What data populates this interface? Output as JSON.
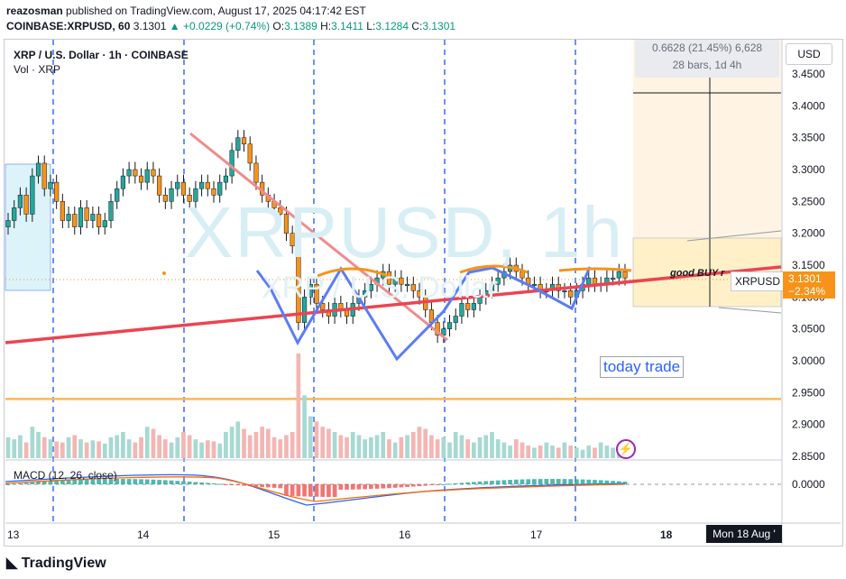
{
  "header": {
    "author": "reazosman",
    "published": "published on TradingView.com, August 17, 2025 04:17:42 EST",
    "symbol_line": "COINBASE:XRPUSD, 60",
    "last": "3.1301",
    "change": "+0.0229 (+0.74%)",
    "open_label": "O:",
    "open": "3.1389",
    "high_label": "H:",
    "high": "3.1411",
    "low_label": "L:",
    "low": "3.1284",
    "close_label": "C:",
    "close": "3.1301"
  },
  "legend": {
    "title": "XRP / U.S. Dollar · 1h · COINBASE",
    "volume": "Vol · XRP",
    "macd": "MACD (12, 26, close)"
  },
  "watermark": {
    "main": "XRPUSD, 1h",
    "sub": "XRP / U.S. Dollar"
  },
  "toolbar": {
    "currency": "USD"
  },
  "measure": {
    "line1": "0.6628 (21.45%) 6,628",
    "line2": "28 bars, 1d 4h"
  },
  "annotations": {
    "today_trade": "today trade",
    "good_buy": "good BUY r"
  },
  "price_tag": {
    "symbol": "XRPUSD",
    "price": "3.1301",
    "change": "−2.34%"
  },
  "date_tag": "Mon 18 Aug '",
  "footer": "TradingView",
  "colors": {
    "up": "#26a69a",
    "down": "#f7931a",
    "trendline": "#ef5350",
    "pattern": "#5b7cf5",
    "orange_line": "#ffb74d",
    "grid_dash": "#2962ff"
  },
  "chart_data": {
    "type": "candlestick",
    "x_ticks": [
      "13",
      "14",
      "15",
      "16",
      "17",
      "18"
    ],
    "y_ticks": [
      "3.4500",
      "3.4000",
      "3.3500",
      "3.3000",
      "3.2500",
      "3.2000",
      "3.1500",
      "3.1000",
      "3.0500",
      "3.0000",
      "2.9500",
      "2.9000",
      "2.8500"
    ],
    "macd_ticks": [
      "0.0000"
    ],
    "ylim": [
      2.845,
      3.48
    ],
    "horizontal_line": 2.94,
    "closes": [
      3.22,
      3.24,
      3.26,
      3.23,
      3.29,
      3.31,
      3.27,
      3.28,
      3.25,
      3.22,
      3.23,
      3.21,
      3.24,
      3.22,
      3.23,
      3.21,
      3.22,
      3.25,
      3.27,
      3.29,
      3.3,
      3.29,
      3.28,
      3.3,
      3.29,
      3.26,
      3.25,
      3.27,
      3.28,
      3.26,
      3.25,
      3.27,
      3.28,
      3.27,
      3.26,
      3.28,
      3.29,
      3.33,
      3.35,
      3.34,
      3.31,
      3.28,
      3.26,
      3.25,
      3.24,
      3.23,
      3.2,
      3.18,
      3.06,
      3.1,
      3.12,
      3.09,
      3.08,
      3.07,
      3.09,
      3.08,
      3.07,
      3.09,
      3.1,
      3.11,
      3.12,
      3.13,
      3.14,
      3.12,
      3.13,
      3.12,
      3.12,
      3.11,
      3.1,
      3.08,
      3.06,
      3.04,
      3.05,
      3.06,
      3.07,
      3.09,
      3.08,
      3.09,
      3.1,
      3.11,
      3.12,
      3.13,
      3.14,
      3.15,
      3.14,
      3.13,
      3.12,
      3.12,
      3.11,
      3.11,
      3.12,
      3.11,
      3.11,
      3.1,
      3.11,
      3.12,
      3.13,
      3.12,
      3.12,
      3.13,
      3.13,
      3.14,
      3.13
    ],
    "volumes": [
      20,
      18,
      22,
      15,
      30,
      25,
      20,
      18,
      16,
      15,
      20,
      22,
      18,
      15,
      17,
      16,
      14,
      20,
      22,
      25,
      18,
      15,
      20,
      30,
      28,
      22,
      18,
      15,
      20,
      25,
      22,
      18,
      15,
      17,
      16,
      14,
      25,
      30,
      35,
      28,
      22,
      25,
      30,
      28,
      20,
      18,
      22,
      25,
      100,
      60,
      40,
      35,
      30,
      28,
      25,
      22,
      20,
      25,
      22,
      18,
      20,
      22,
      25,
      18,
      15,
      20,
      22,
      25,
      30,
      28,
      22,
      18,
      20,
      15,
      25,
      22,
      18,
      15,
      20,
      22,
      25,
      18,
      15,
      12,
      18,
      15,
      12,
      10,
      12,
      15,
      12,
      10,
      15,
      12,
      10,
      8,
      12,
      10,
      15,
      12,
      10,
      8,
      10
    ]
  }
}
